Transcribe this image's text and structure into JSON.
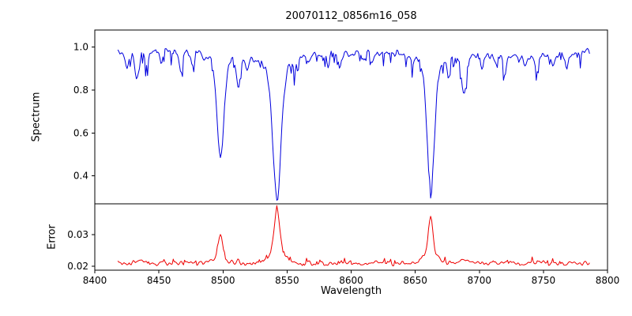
{
  "chart_data": {
    "type": "line",
    "title": "20070112_0856m16_058",
    "xlabel": "Wavelength",
    "xlim": [
      8400,
      8800
    ],
    "x_range_data": [
      8418,
      8786
    ],
    "xticks": [
      8400,
      8450,
      8500,
      8550,
      8600,
      8650,
      8700,
      8750,
      8800
    ],
    "grid": false,
    "legend": "none",
    "panels": [
      {
        "name": "spectrum",
        "ylabel": "Spectrum",
        "color": "#0000dd",
        "ylim": [
          0.27,
          1.08
        ],
        "yticks": [
          "0.4",
          "0.6",
          "0.8",
          "1.0"
        ],
        "continuum": 0.968,
        "noise_amplitude": 0.02,
        "absorption_lines": [
          {
            "center": 8425.0,
            "depth": 0.07,
            "sigma": 1.2
          },
          {
            "center": 8433.0,
            "depth": 0.13,
            "sigma": 1.6
          },
          {
            "center": 8441.0,
            "depth": 0.08,
            "sigma": 1.2
          },
          {
            "center": 8452.0,
            "depth": 0.05,
            "sigma": 1.0
          },
          {
            "center": 8467.0,
            "depth": 0.09,
            "sigma": 1.4
          },
          {
            "center": 8476.0,
            "depth": 0.05,
            "sigma": 1.0
          },
          {
            "center": 8498.0,
            "depth": 0.48,
            "sigma": 2.6
          },
          {
            "center": 8512.0,
            "depth": 0.13,
            "sigma": 1.6
          },
          {
            "center": 8519.0,
            "depth": 0.06,
            "sigma": 1.0
          },
          {
            "center": 8542.1,
            "depth": 0.66,
            "sigma": 3.2
          },
          {
            "center": 8556.0,
            "depth": 0.05,
            "sigma": 1.1
          },
          {
            "center": 8567.0,
            "depth": 0.04,
            "sigma": 1.0
          },
          {
            "center": 8582.0,
            "depth": 0.05,
            "sigma": 1.1
          },
          {
            "center": 8591.0,
            "depth": 0.06,
            "sigma": 1.2
          },
          {
            "center": 8611.0,
            "depth": 0.04,
            "sigma": 1.0
          },
          {
            "center": 8616.0,
            "depth": 0.05,
            "sigma": 1.0
          },
          {
            "center": 8648.0,
            "depth": 0.05,
            "sigma": 1.0
          },
          {
            "center": 8662.1,
            "depth": 0.615,
            "sigma": 2.9
          },
          {
            "center": 8676.0,
            "depth": 0.08,
            "sigma": 1.3
          },
          {
            "center": 8688.0,
            "depth": 0.2,
            "sigma": 1.8
          },
          {
            "center": 8702.0,
            "depth": 0.06,
            "sigma": 1.1
          },
          {
            "center": 8713.0,
            "depth": 0.05,
            "sigma": 1.0
          },
          {
            "center": 8720.0,
            "depth": 0.08,
            "sigma": 1.3
          },
          {
            "center": 8736.0,
            "depth": 0.05,
            "sigma": 1.1
          },
          {
            "center": 8745.0,
            "depth": 0.07,
            "sigma": 1.2
          },
          {
            "center": 8757.0,
            "depth": 0.05,
            "sigma": 1.0
          },
          {
            "center": 8768.0,
            "depth": 0.06,
            "sigma": 1.1
          }
        ]
      },
      {
        "name": "error",
        "ylabel": "Error",
        "color": "#ee0000",
        "ylim": [
          0.0187,
          0.0398
        ],
        "yticks": [
          "0.02",
          "0.03"
        ],
        "baseline": 0.0209,
        "noise_amplitude": 0.0006,
        "peaks": [
          {
            "center": 8433.0,
            "height": 0.0006,
            "sigma": 1.6
          },
          {
            "center": 8498.0,
            "height": 0.0085,
            "sigma": 1.7
          },
          {
            "center": 8512.0,
            "height": 0.0007,
            "sigma": 1.4
          },
          {
            "center": 8542.1,
            "height": 0.0178,
            "sigma": 1.9
          },
          {
            "center": 8662.1,
            "height": 0.015,
            "sigma": 1.7
          },
          {
            "center": 8688.0,
            "height": 0.0012,
            "sigma": 1.5
          },
          {
            "center": 8720.0,
            "height": 0.0005,
            "sigma": 1.3
          }
        ]
      }
    ]
  }
}
